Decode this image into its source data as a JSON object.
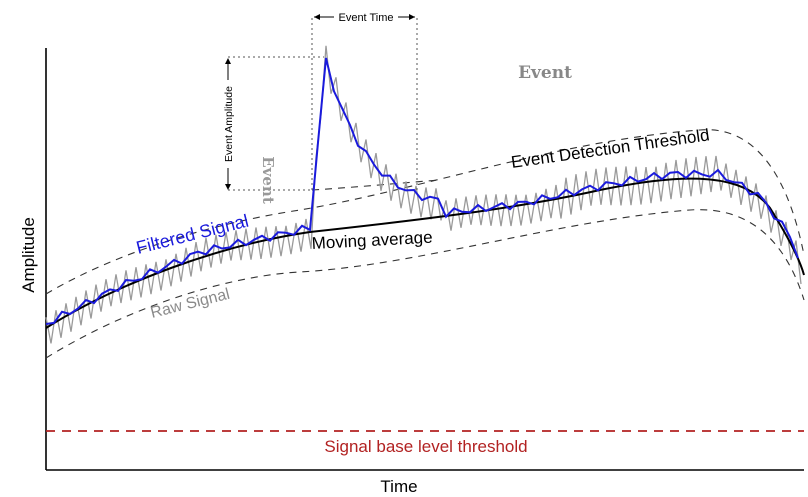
{
  "labels": {
    "x_axis": "Time",
    "y_axis": "Amplitude",
    "filtered_signal": "Filtered Signal",
    "raw_signal": "Raw Signal",
    "moving_average": "Moving average",
    "event_detection_threshold": "Event Detection Threshold",
    "signal_base_level_threshold": "Signal base level threshold",
    "event_time": "Event Time",
    "event_amplitude": "Event Amplitude",
    "event_watermark_top": "Event",
    "event_watermark_side": "Event"
  },
  "colors": {
    "filtered": "#1a1adc",
    "raw": "#9a9a9a",
    "moving_average": "#000000",
    "threshold_dashes": "#333333",
    "base_threshold": "#b22222",
    "watermark": "#888888"
  }
}
